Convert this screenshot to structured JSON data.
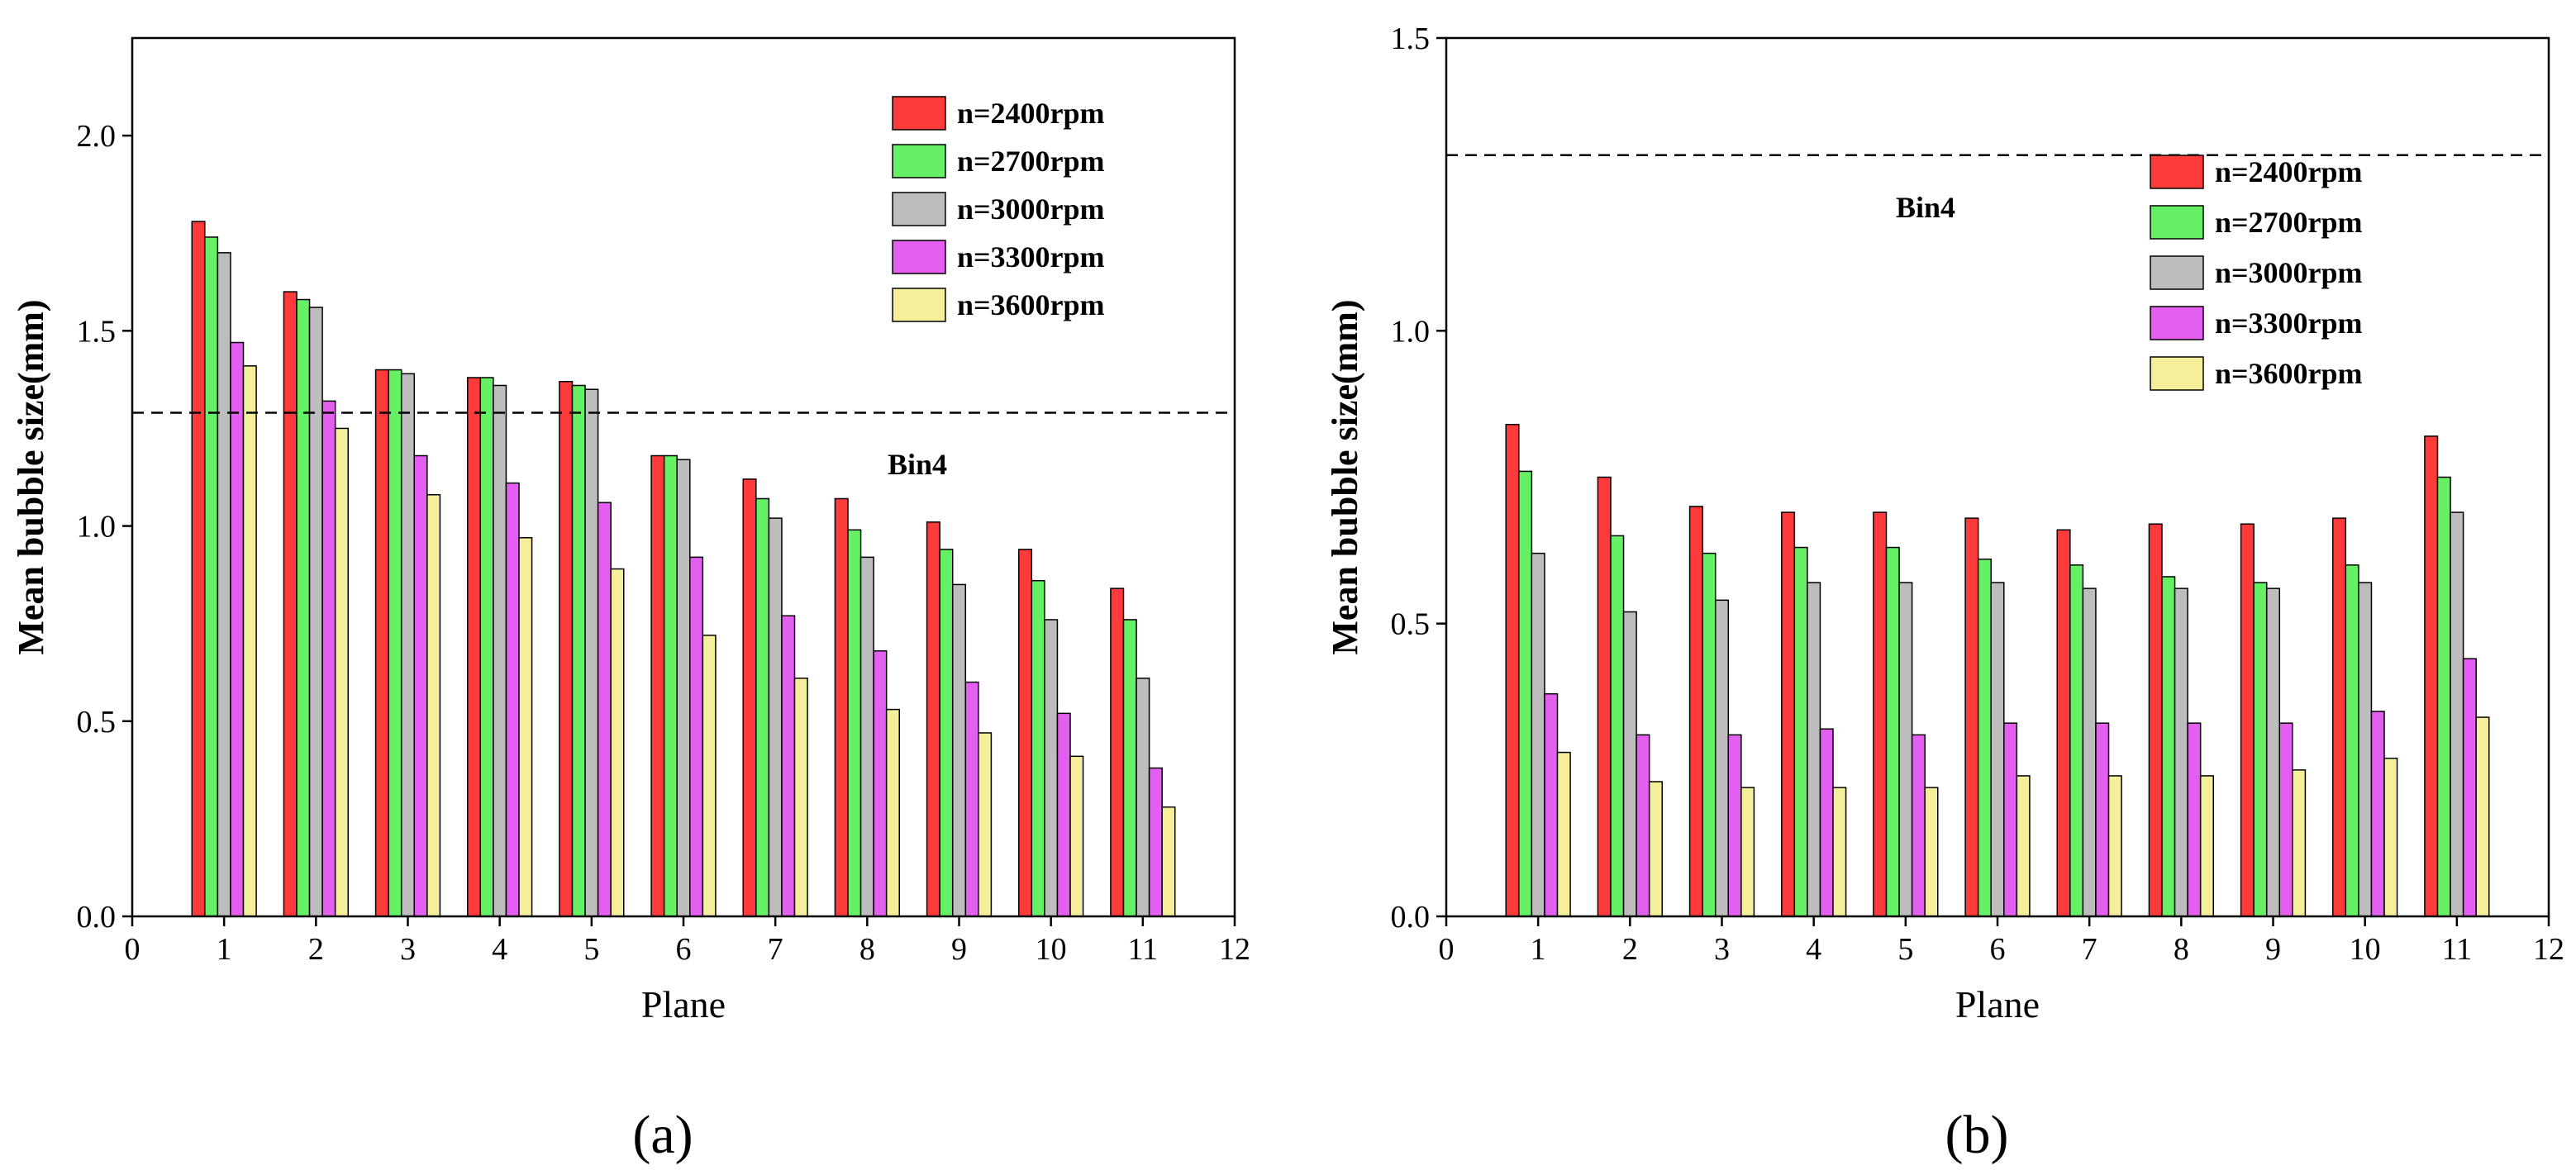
{
  "chart_data": [
    {
      "type": "bar",
      "panel_label": "(a)",
      "xlabel": "Plane",
      "ylabel": "Mean bubble size(mm)",
      "xlim": [
        0,
        12
      ],
      "ylim": [
        0,
        2.25
      ],
      "xticks": [
        0,
        1,
        2,
        3,
        4,
        5,
        6,
        7,
        8,
        9,
        10,
        11,
        12
      ],
      "yticks": [
        "0.0",
        "0.5",
        "1.0",
        "1.5",
        "2.0"
      ],
      "categories": [
        1,
        2,
        3,
        4,
        5,
        6,
        7,
        8,
        9,
        10,
        11
      ],
      "series": [
        {
          "name": "n=2400rpm",
          "color": "#ff3a3a",
          "values": [
            1.78,
            1.6,
            1.4,
            1.38,
            1.37,
            1.18,
            1.12,
            1.07,
            1.01,
            0.94,
            0.84
          ]
        },
        {
          "name": "n=2700rpm",
          "color": "#66f066",
          "values": [
            1.74,
            1.58,
            1.4,
            1.38,
            1.36,
            1.18,
            1.07,
            0.99,
            0.94,
            0.86,
            0.76
          ]
        },
        {
          "name": "n=3000rpm",
          "color": "#bdbdbd",
          "values": [
            1.7,
            1.56,
            1.39,
            1.36,
            1.35,
            1.17,
            1.02,
            0.92,
            0.85,
            0.76,
            0.61
          ]
        },
        {
          "name": "n=3300rpm",
          "color": "#e35ff0",
          "values": [
            1.47,
            1.32,
            1.18,
            1.11,
            1.06,
            0.92,
            0.77,
            0.68,
            0.6,
            0.52,
            0.38
          ]
        },
        {
          "name": "n=3600rpm",
          "color": "#f5ee9a",
          "values": [
            1.41,
            1.25,
            1.08,
            0.97,
            0.89,
            0.72,
            0.61,
            0.53,
            0.47,
            0.41,
            0.28
          ]
        }
      ],
      "reference_line": {
        "y": 1.29,
        "label": "Bin4",
        "style": "dashed"
      },
      "legend_position": "top-right"
    },
    {
      "type": "bar",
      "panel_label": "(b)",
      "xlabel": "Plane",
      "ylabel": "Mean bubble size(mm)",
      "xlim": [
        0,
        12
      ],
      "ylim": [
        0,
        1.5
      ],
      "xticks": [
        0,
        1,
        2,
        3,
        4,
        5,
        6,
        7,
        8,
        9,
        10,
        11,
        12
      ],
      "yticks": [
        "0.0",
        "0.5",
        "1.0",
        "1.5"
      ],
      "categories": [
        1,
        2,
        3,
        4,
        5,
        6,
        7,
        8,
        9,
        10,
        11
      ],
      "series": [
        {
          "name": "n=2400rpm",
          "color": "#ff3a3a",
          "values": [
            0.84,
            0.75,
            0.7,
            0.69,
            0.69,
            0.68,
            0.66,
            0.67,
            0.67,
            0.68,
            0.82
          ]
        },
        {
          "name": "n=2700rpm",
          "color": "#66f066",
          "values": [
            0.76,
            0.65,
            0.62,
            0.63,
            0.63,
            0.61,
            0.6,
            0.58,
            0.57,
            0.6,
            0.75
          ]
        },
        {
          "name": "n=3000rpm",
          "color": "#bdbdbd",
          "values": [
            0.62,
            0.52,
            0.54,
            0.57,
            0.57,
            0.57,
            0.56,
            0.56,
            0.56,
            0.57,
            0.69
          ]
        },
        {
          "name": "n=3300rpm",
          "color": "#e35ff0",
          "values": [
            0.38,
            0.31,
            0.31,
            0.32,
            0.31,
            0.33,
            0.33,
            0.33,
            0.33,
            0.35,
            0.44
          ]
        },
        {
          "name": "n=3600rpm",
          "color": "#f5ee9a",
          "values": [
            0.28,
            0.23,
            0.22,
            0.22,
            0.22,
            0.24,
            0.24,
            0.24,
            0.25,
            0.27,
            0.34
          ]
        }
      ],
      "reference_line": {
        "y": 1.3,
        "label": "Bin4",
        "style": "dashed"
      },
      "legend_position": "top-right"
    }
  ]
}
